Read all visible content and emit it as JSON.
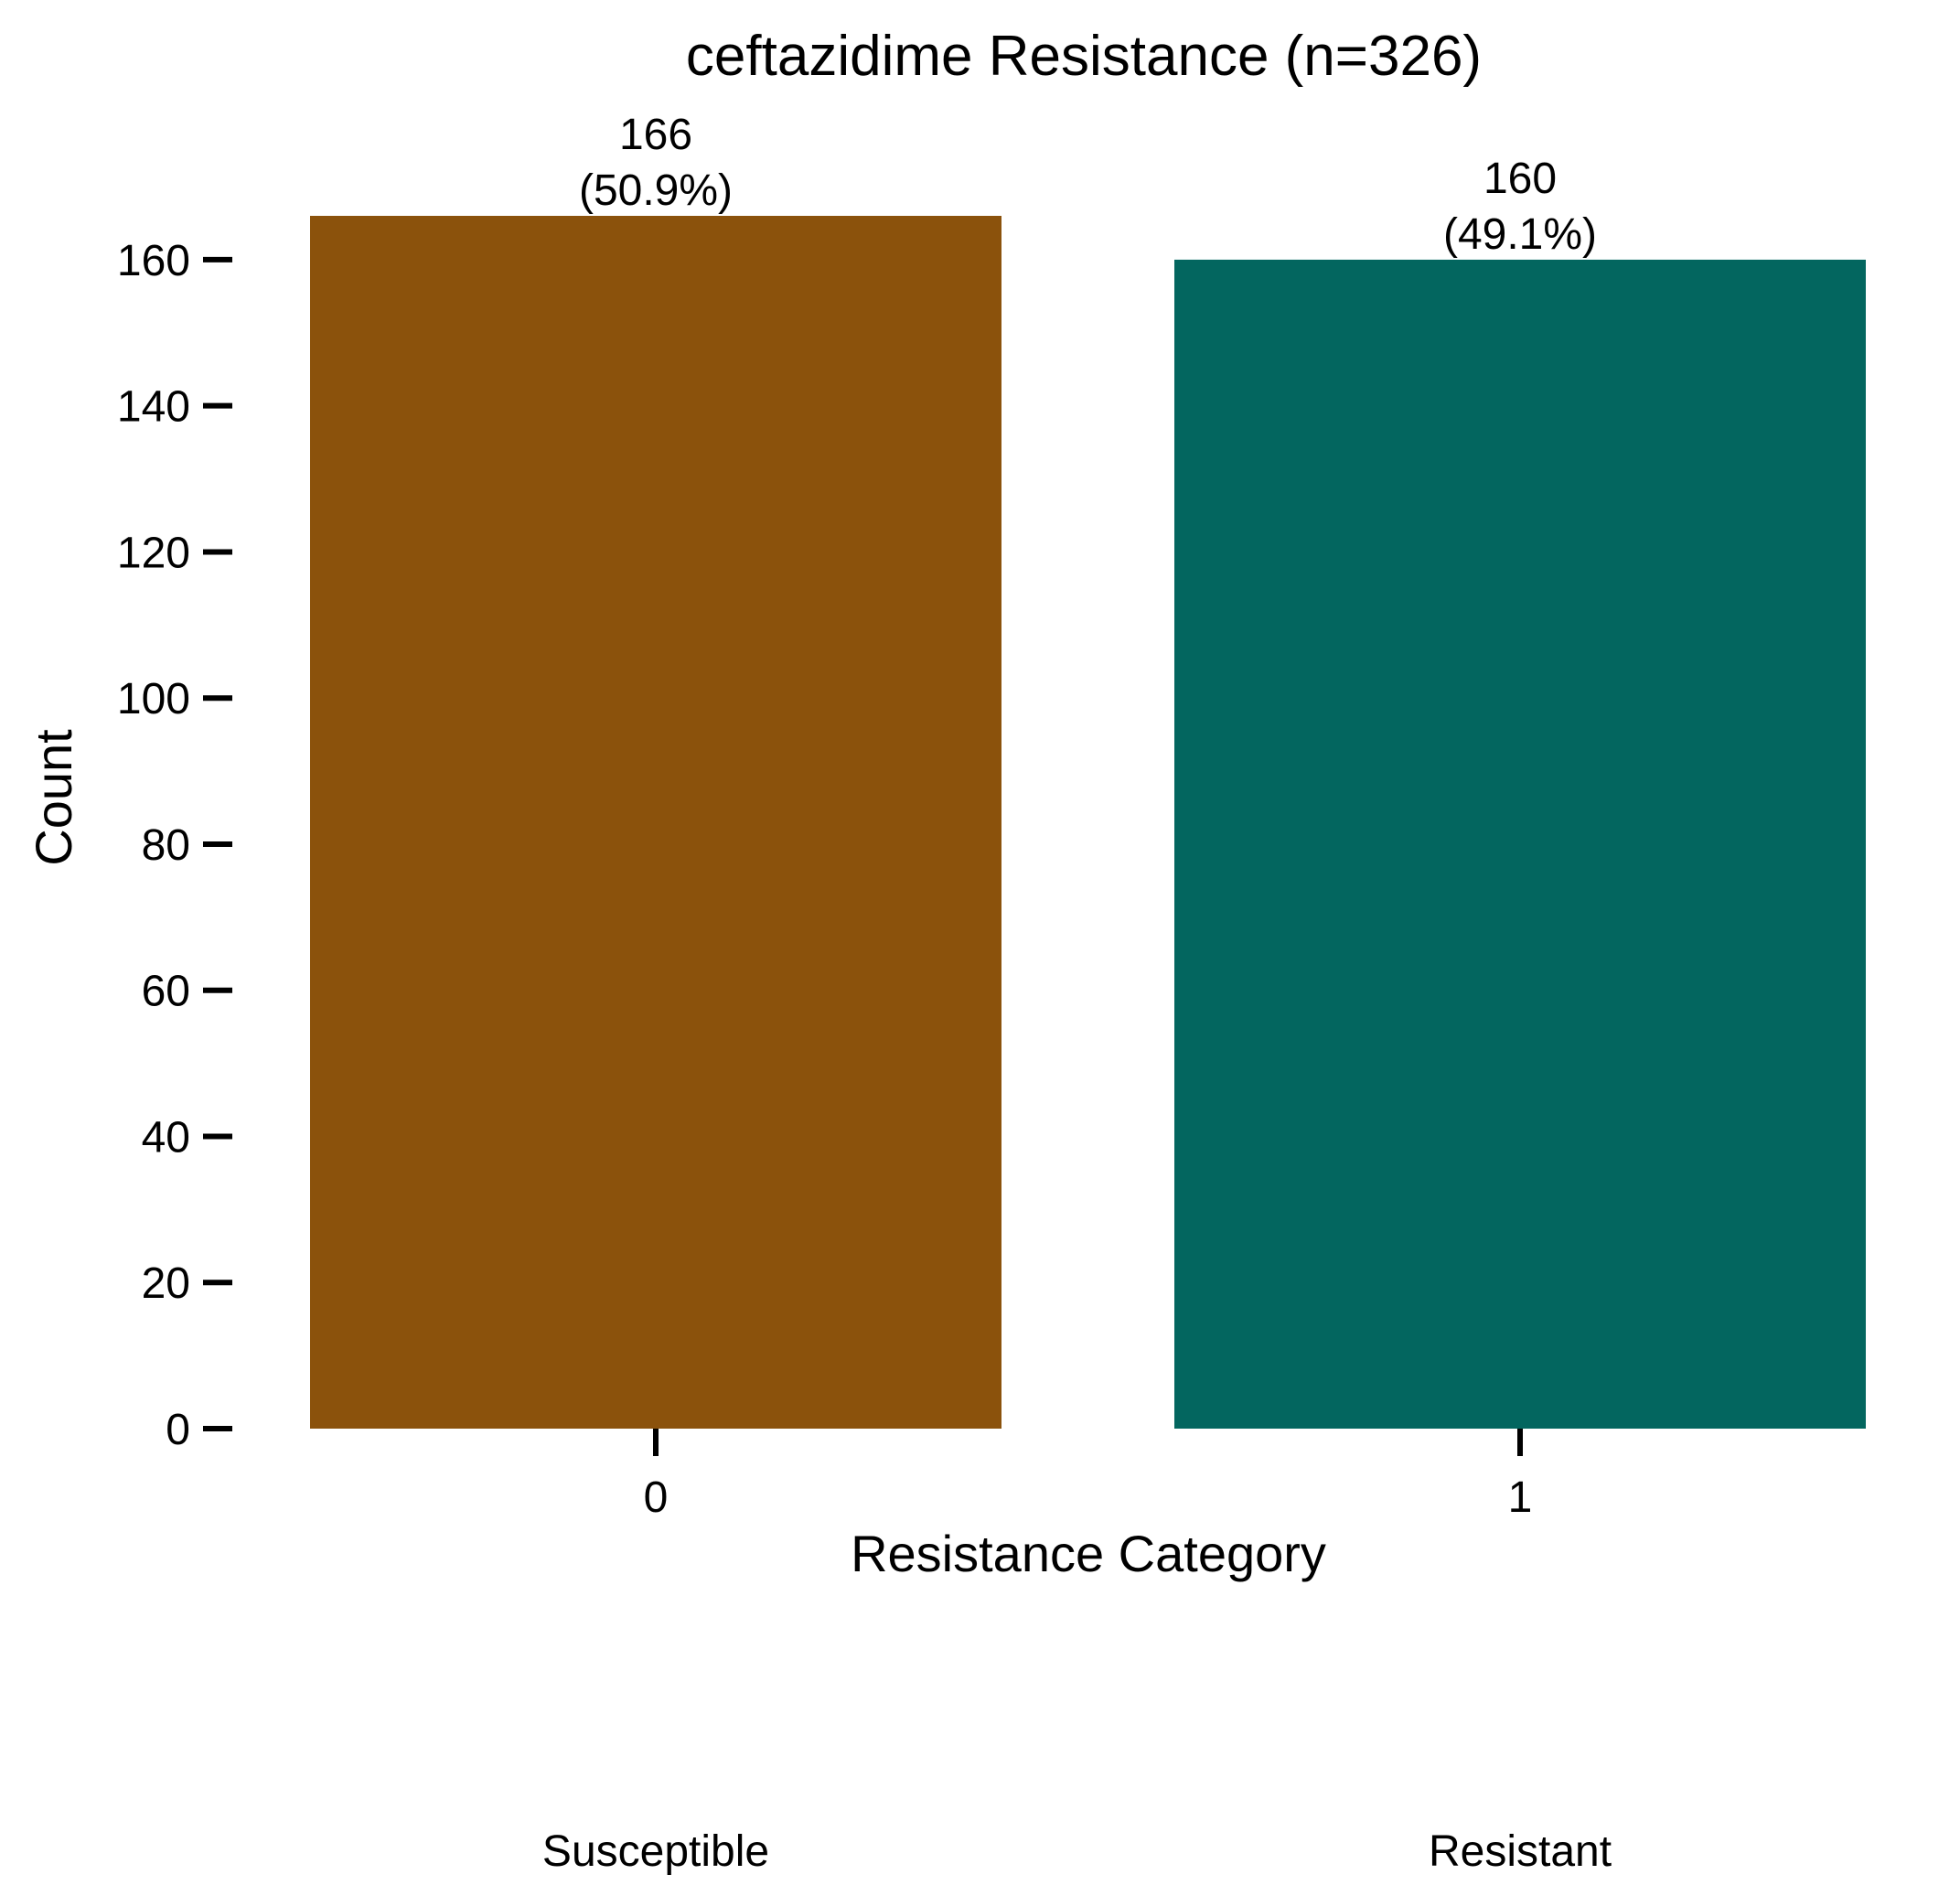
{
  "chart_data": {
    "type": "bar",
    "title": "ceftazidime Resistance (n=326)",
    "xlabel": "Resistance Category",
    "ylabel": "Count",
    "categories": [
      "0",
      "1"
    ],
    "category_descriptions": [
      "Susceptible",
      "Resistant"
    ],
    "values": [
      166,
      160
    ],
    "data_labels": [
      [
        "166",
        "(50.9%)"
      ],
      [
        "160",
        "(49.1%)"
      ]
    ],
    "colors": [
      "#8B520C",
      "#03665F"
    ],
    "ylim": [
      0,
      166
    ],
    "yticks": [
      0,
      20,
      40,
      60,
      80,
      100,
      120,
      140,
      160
    ],
    "grid": false,
    "legend": "none"
  }
}
